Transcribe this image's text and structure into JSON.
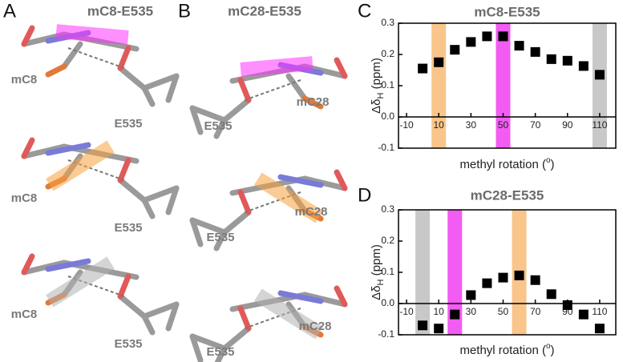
{
  "figure": {
    "panel_labels": [
      "A",
      "B",
      "C",
      "D"
    ],
    "structures": [
      {
        "title": "mC8-E535",
        "labels": [
          [
            "mC8",
            "E535"
          ],
          [
            "mC8",
            "E535"
          ],
          [
            "mC8",
            "E535"
          ]
        ]
      },
      {
        "title": "mC28-E535",
        "labels": [
          [
            "mC28",
            "E535"
          ],
          [
            "mC28",
            "E535"
          ],
          [
            "mC28",
            "E535"
          ]
        ]
      }
    ]
  },
  "chart_data": [
    {
      "type": "scatter",
      "title": "mC8-E535",
      "ylabel": {
        "symbol": "Δδ",
        "subscript": "H",
        "unit": " (ppm)"
      },
      "xlabel": {
        "text": "methyl rotation (",
        "superscript": "o",
        "close": ")"
      },
      "x": [
        0,
        10,
        20,
        30,
        40,
        50,
        60,
        70,
        80,
        90,
        100,
        110
      ],
      "values": [
        0.155,
        0.175,
        0.215,
        0.24,
        0.258,
        0.258,
        0.228,
        0.208,
        0.185,
        0.18,
        0.163,
        0.135
      ],
      "color": "#000000",
      "highlights": [
        {
          "x": 10,
          "color": "#f9c58a"
        },
        {
          "x": 50,
          "color": "#f25cf2"
        },
        {
          "x": 110,
          "color": "#c8c8c8"
        }
      ],
      "xlim": [
        -15,
        120
      ],
      "xticks": [
        -10,
        10,
        30,
        50,
        70,
        90,
        110
      ],
      "ylim": [
        -0.1,
        0.3
      ],
      "yticks": [
        -0.1,
        {
          "value": 0,
          "label": "0.0"
        },
        0.1,
        0.2,
        0.3
      ]
    },
    {
      "type": "scatter",
      "title": "mC28-E535",
      "ylabel": {
        "symbol": "Δδ",
        "subscript": "H",
        "unit": " (ppm)"
      },
      "xlabel": {
        "text": "methyl rotation (",
        "superscript": "o",
        "close": ")"
      },
      "x": [
        0,
        10,
        20,
        30,
        40,
        50,
        60,
        70,
        80,
        90,
        100,
        110
      ],
      "values": [
        -0.07,
        -0.08,
        -0.035,
        0.027,
        0.065,
        0.083,
        0.09,
        0.075,
        0.03,
        -0.005,
        -0.035,
        -0.08
      ],
      "color": "#000000",
      "highlights": [
        {
          "x": 0,
          "color": "#c8c8c8"
        },
        {
          "x": 20,
          "color": "#f25cf2"
        },
        {
          "x": 60,
          "color": "#f9c58a"
        }
      ],
      "xlim": [
        -15,
        120
      ],
      "xticks": [
        -10,
        10,
        30,
        50,
        70,
        90,
        110
      ],
      "ylim": [
        -0.1,
        0.3
      ],
      "yticks": [
        -0.1,
        {
          "value": 0,
          "label": "0.0"
        },
        0.1,
        0.2,
        0.3
      ]
    }
  ]
}
